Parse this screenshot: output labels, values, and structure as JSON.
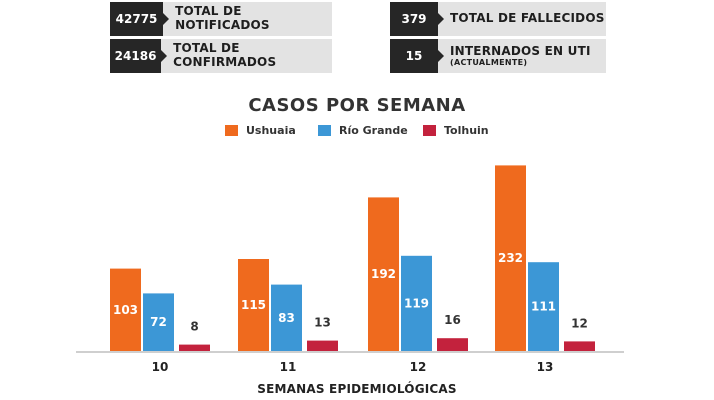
{
  "stats": [
    {
      "value": "42775",
      "label": "TOTAL DE NOTIFICADOS",
      "sublabel": ""
    },
    {
      "value": "24186",
      "label": "TOTAL DE CONFIRMADOS",
      "sublabel": ""
    },
    {
      "value": "379",
      "label": "TOTAL DE FALLECIDOS",
      "sublabel": ""
    },
    {
      "value": "15",
      "label": "INTERNADOS EN UTI",
      "sublabel": "(ACTUALMENTE)"
    }
  ],
  "chart_data": {
    "type": "bar",
    "title": "CASOS POR SEMANA",
    "xlabel": "SEMANAS EPIDEMIOLÓGICAS",
    "ylabel": "",
    "categories": [
      "10",
      "11",
      "12",
      "13"
    ],
    "series": [
      {
        "name": "Ushuaia",
        "color": "#ef6a1e",
        "values": [
          103,
          115,
          192,
          232
        ]
      },
      {
        "name": "Río Grande",
        "color": "#3c97d6",
        "values": [
          72,
          83,
          119,
          111
        ]
      },
      {
        "name": "Tolhuin",
        "color": "#c3223d",
        "values": [
          8,
          13,
          16,
          12
        ]
      }
    ],
    "ylim": [
      0,
      240
    ],
    "grid": false,
    "legend": "top-center",
    "data_labels": true
  }
}
